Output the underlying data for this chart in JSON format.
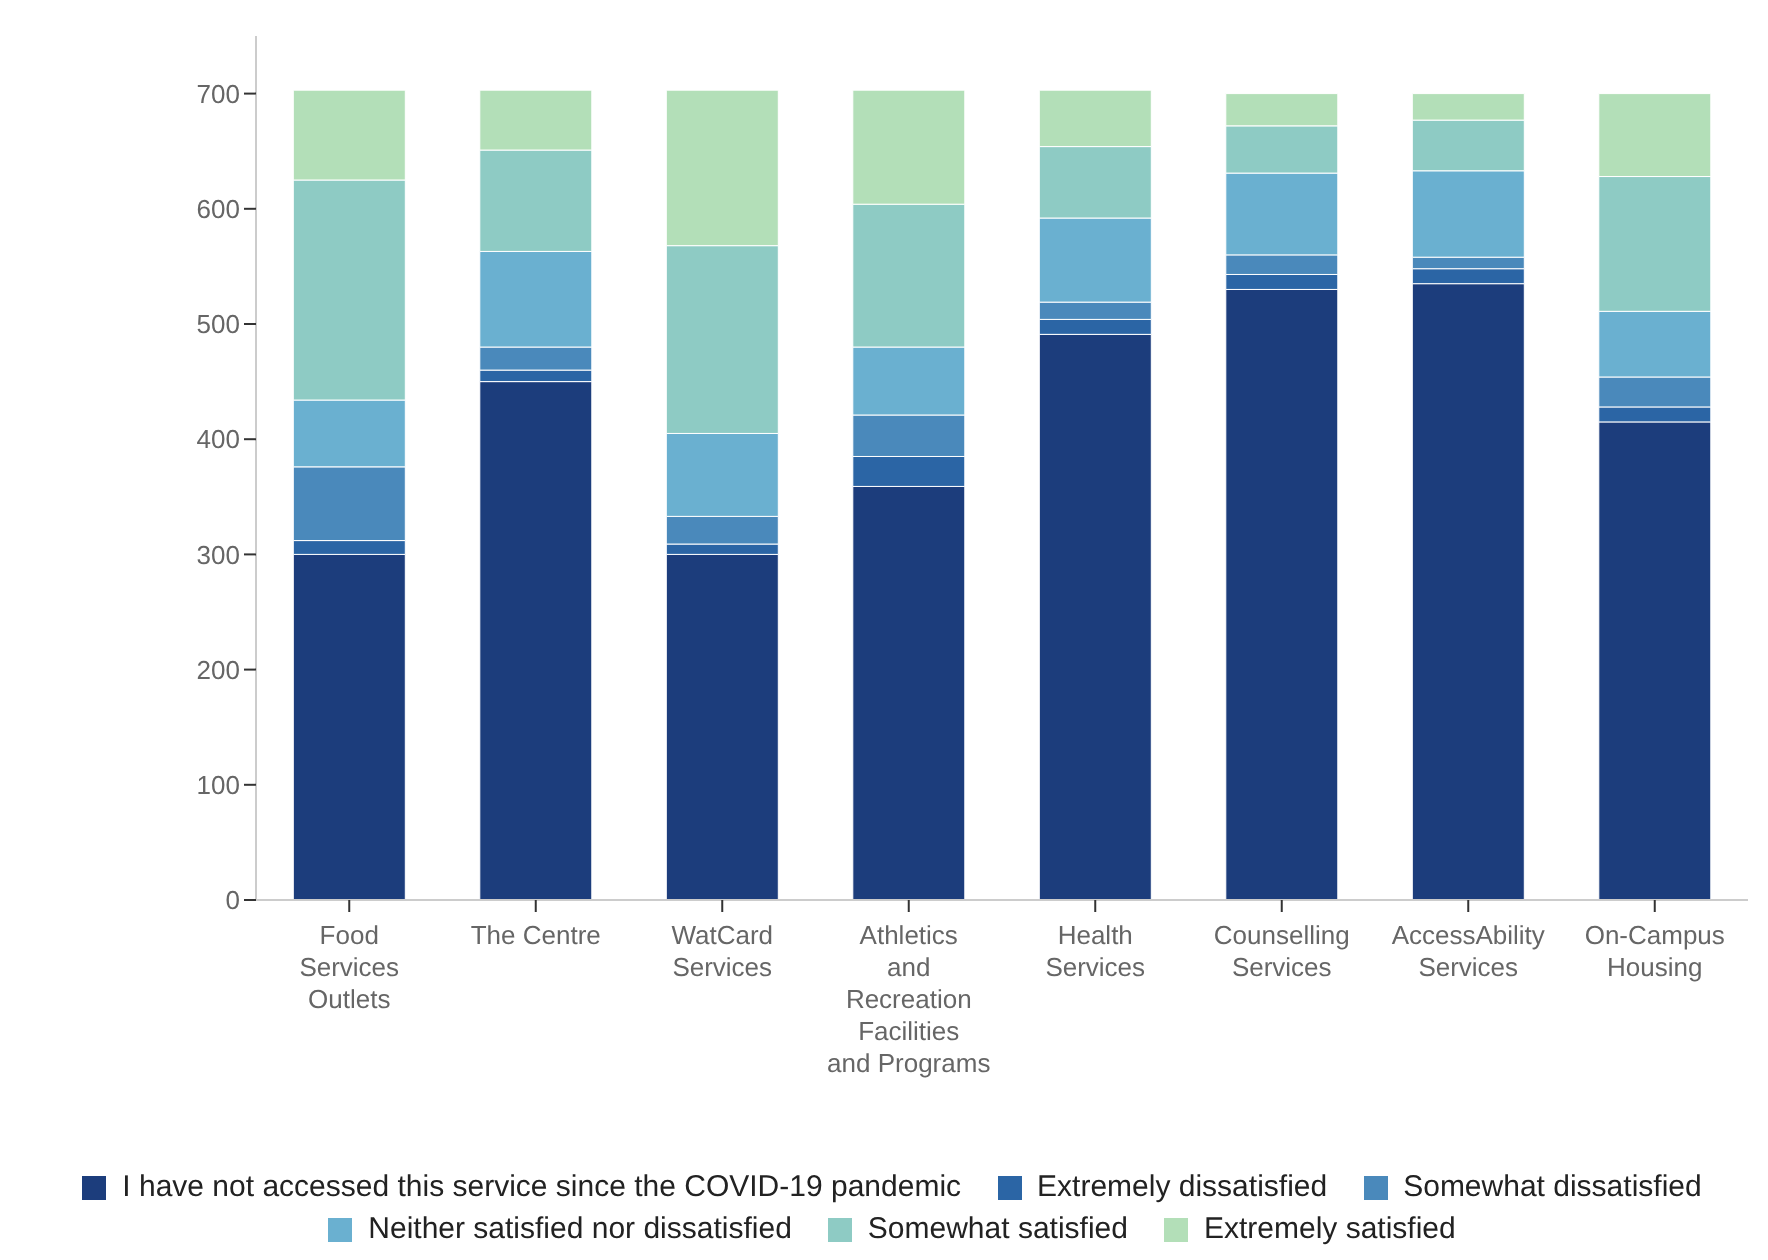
{
  "chart_data": {
    "type": "bar",
    "stacked": true,
    "categories": [
      "Food Services Outlets",
      "The Centre",
      "WatCard Services",
      "Athletics and Recreation Facilities and Programs",
      "Health Services",
      "Counselling Services",
      "AccessAbility Services",
      "On-Campus Housing"
    ],
    "series": [
      {
        "name": "I have not accessed this service since the COVID-19 pandemic",
        "color": "#1c3d7c",
        "values": [
          300,
          450,
          300,
          359,
          491,
          530,
          535,
          415
        ]
      },
      {
        "name": "Extremely dissatisfied",
        "color": "#2b65a5",
        "values": [
          12,
          10,
          9,
          26,
          13,
          13,
          13,
          13
        ]
      },
      {
        "name": "Somewhat dissatisfied",
        "color": "#4a89bb",
        "values": [
          64,
          20,
          24,
          36,
          15,
          17,
          10,
          26
        ]
      },
      {
        "name": "Neither satisfied nor dissatisfied",
        "color": "#6ab0d0",
        "values": [
          58,
          83,
          72,
          59,
          73,
          71,
          75,
          57
        ]
      },
      {
        "name": "Somewhat satisfied",
        "color": "#8ecbc4",
        "values": [
          191,
          88,
          163,
          124,
          62,
          41,
          44,
          117
        ]
      },
      {
        "name": "Extremely satisfied",
        "color": "#b3dfb8",
        "values": [
          78,
          52,
          135,
          99,
          49,
          28,
          23,
          72
        ]
      }
    ],
    "ylim": [
      0,
      750
    ],
    "yticks": [
      0,
      100,
      200,
      300,
      400,
      500,
      600,
      700
    ],
    "grid": false,
    "legend": "bottom"
  }
}
